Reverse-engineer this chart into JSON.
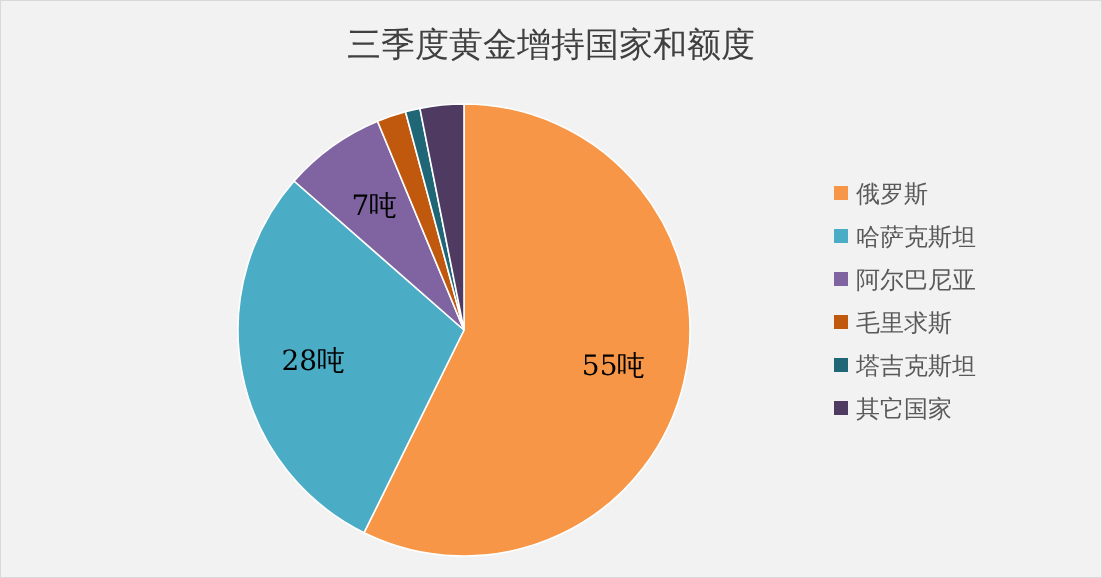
{
  "chart_data": {
    "type": "pie",
    "title": "三季度黄金增持国家和额度",
    "categories": [
      "俄罗斯",
      "哈萨克斯坦",
      "阿尔巴尼亚",
      "毛里求斯",
      "塔吉克斯坦",
      "其它国家"
    ],
    "values": [
      55,
      28,
      7,
      2,
      1,
      3
    ],
    "colors": [
      "#f79646",
      "#4bacc6",
      "#8064a2",
      "#c0590d",
      "#1f6677",
      "#4f3b62"
    ],
    "value_labels": [
      "55吨",
      "28吨",
      "7吨",
      null,
      null,
      null
    ],
    "legend": "right"
  }
}
